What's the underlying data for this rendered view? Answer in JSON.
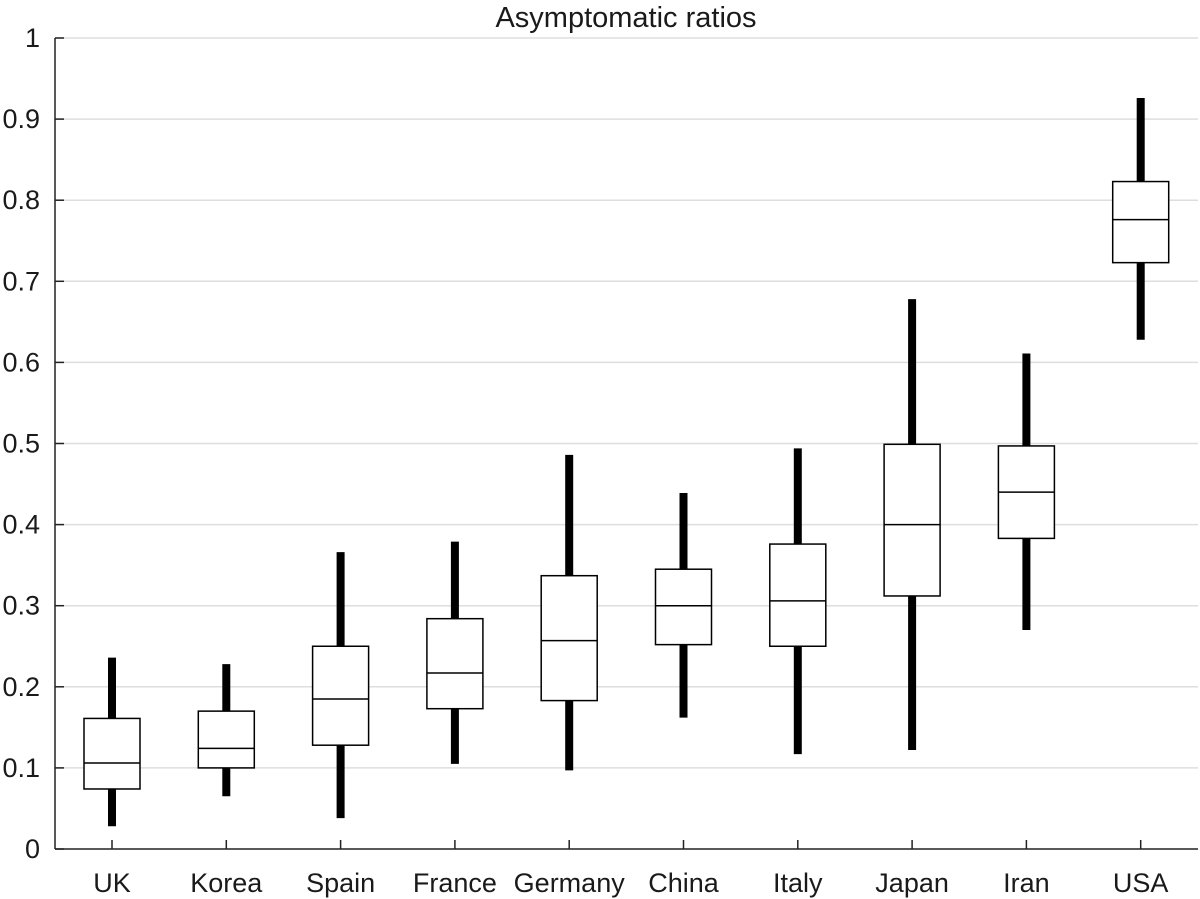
{
  "chart_data": {
    "type": "box",
    "title": "Asymptomatic ratios",
    "xlabel": "",
    "ylabel": "",
    "ylim": [
      0,
      1
    ],
    "yticks": [
      0,
      0.1,
      0.2,
      0.3,
      0.4,
      0.5,
      0.6,
      0.7,
      0.8,
      0.9,
      1
    ],
    "ytick_labels": [
      "0",
      "0.1",
      "0.2",
      "0.3",
      "0.4",
      "0.5",
      "0.6",
      "0.7",
      "0.8",
      "0.9",
      "1"
    ],
    "grid": "horizontal",
    "categories": [
      "UK",
      "Korea",
      "Spain",
      "France",
      "Germany",
      "China",
      "Italy",
      "Japan",
      "Iran",
      "USA"
    ],
    "boxes": [
      {
        "category": "UK",
        "whisker_low": 0.028,
        "q1": 0.074,
        "median": 0.106,
        "q3": 0.161,
        "whisker_high": 0.236
      },
      {
        "category": "Korea",
        "whisker_low": 0.065,
        "q1": 0.1,
        "median": 0.124,
        "q3": 0.17,
        "whisker_high": 0.228
      },
      {
        "category": "Spain",
        "whisker_low": 0.038,
        "q1": 0.128,
        "median": 0.185,
        "q3": 0.25,
        "whisker_high": 0.366
      },
      {
        "category": "France",
        "whisker_low": 0.105,
        "q1": 0.173,
        "median": 0.217,
        "q3": 0.284,
        "whisker_high": 0.379
      },
      {
        "category": "Germany",
        "whisker_low": 0.097,
        "q1": 0.183,
        "median": 0.257,
        "q3": 0.337,
        "whisker_high": 0.486
      },
      {
        "category": "China",
        "whisker_low": 0.162,
        "q1": 0.252,
        "median": 0.3,
        "q3": 0.345,
        "whisker_high": 0.439
      },
      {
        "category": "Italy",
        "whisker_low": 0.117,
        "q1": 0.25,
        "median": 0.306,
        "q3": 0.376,
        "whisker_high": 0.494
      },
      {
        "category": "Japan",
        "whisker_low": 0.122,
        "q1": 0.312,
        "median": 0.4,
        "q3": 0.499,
        "whisker_high": 0.678
      },
      {
        "category": "Iran",
        "whisker_low": 0.27,
        "q1": 0.383,
        "median": 0.44,
        "q3": 0.497,
        "whisker_high": 0.611
      },
      {
        "category": "USA",
        "whisker_low": 0.628,
        "q1": 0.723,
        "median": 0.776,
        "q3": 0.823,
        "whisker_high": 0.926
      }
    ]
  }
}
